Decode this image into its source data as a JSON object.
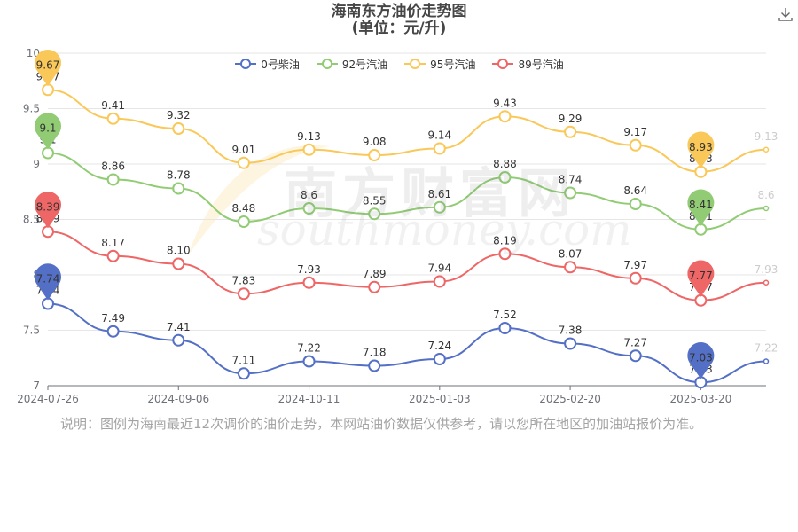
{
  "title_line1": "海南东方油价走势图",
  "title_line2": "(单位：元/升)",
  "note": "说明：图例为海南最近12次调价的油价走势，本网站油价数据仅供参考，请以您所在地区的加油站报价为准。",
  "watermark": {
    "cn": "南方财富网",
    "en": "southmoney.com"
  },
  "chart_data": {
    "type": "line",
    "title": "海南东方油价走势图",
    "subtitle": "(单位：元/升)",
    "xlabel": "",
    "ylabel": "",
    "ylim": [
      7,
      10
    ],
    "y_ticks": [
      "7",
      "7.5",
      "8",
      "8.5",
      "9",
      "9.5",
      "10"
    ],
    "x_tick_labels": [
      "2024-07-26",
      "2024-09-06",
      "2024-10-11",
      "2025-01-03",
      "2025-02-20",
      "2025-03-20"
    ],
    "x_tick_positions": [
      0,
      2,
      4,
      6,
      8,
      10
    ],
    "legend_position": "top-center",
    "grid": true,
    "series": [
      {
        "name": "0号柴油",
        "color": "#5470c6",
        "values": [
          7.74,
          7.49,
          7.41,
          7.11,
          7.22,
          7.18,
          7.24,
          7.52,
          7.38,
          7.27,
          7.03,
          7.22
        ],
        "labels": [
          "7.74",
          "7.49",
          "7.41",
          "7.11",
          "7.22",
          "7.18",
          "7.24",
          "7.52",
          "7.38",
          "7.27",
          "7.03",
          "7.22"
        ],
        "pins": [
          {
            "index": 0,
            "label": "7.74"
          },
          {
            "index": 10,
            "label": "7.03"
          }
        ]
      },
      {
        "name": "92号汽油",
        "color": "#91cc75",
        "values": [
          9.1,
          8.86,
          8.78,
          8.48,
          8.6,
          8.55,
          8.61,
          8.88,
          8.74,
          8.64,
          8.41,
          8.6
        ],
        "labels": [
          "9.1",
          "8.86",
          "8.78",
          "8.48",
          "8.6",
          "8.55",
          "8.61",
          "8.88",
          "8.74",
          "8.64",
          "8.41",
          "8.6"
        ],
        "pins": [
          {
            "index": 0,
            "label": "9.1"
          },
          {
            "index": 10,
            "label": "8.41"
          }
        ]
      },
      {
        "name": "95号汽油",
        "color": "#fac858",
        "values": [
          9.67,
          9.41,
          9.32,
          9.01,
          9.13,
          9.08,
          9.14,
          9.43,
          9.29,
          9.17,
          8.93,
          9.13
        ],
        "labels": [
          "9.67",
          "9.41",
          "9.32",
          "9.01",
          "9.13",
          "9.08",
          "9.14",
          "9.43",
          "9.29",
          "9.17",
          "8.93",
          "9.13"
        ],
        "pins": [
          {
            "index": 0,
            "label": "9.67"
          },
          {
            "index": 10,
            "label": "8.93"
          }
        ]
      },
      {
        "name": "89号汽油",
        "color": "#ee6666",
        "values": [
          8.39,
          8.17,
          8.1,
          7.83,
          7.93,
          7.89,
          7.94,
          8.19,
          8.07,
          7.97,
          7.77,
          7.93
        ],
        "labels": [
          "8.39",
          "8.17",
          "8.10",
          "7.83",
          "7.93",
          "7.89",
          "7.94",
          "8.19",
          "8.07",
          "7.97",
          "7.77",
          "7.93"
        ],
        "pins": [
          {
            "index": 0,
            "label": "8.39"
          },
          {
            "index": 10,
            "label": "7.77"
          }
        ]
      }
    ]
  },
  "icons": {
    "download": "download-icon"
  }
}
